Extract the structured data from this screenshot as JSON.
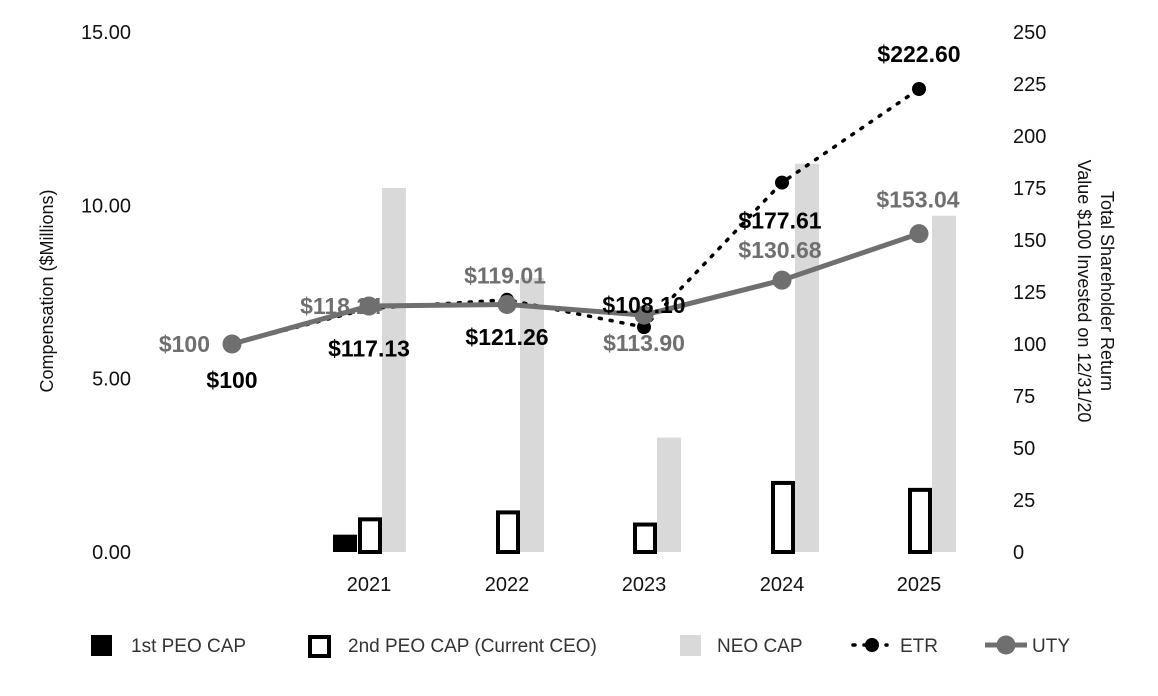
{
  "chart_data": {
    "type": "bar",
    "categories": [
      "2021",
      "2022",
      "2023",
      "2024",
      "2025"
    ],
    "y_left": {
      "label": "Compensation ($Millions)",
      "ticks": [
        "0.00",
        "5.00",
        "10.00",
        "15.00"
      ],
      "range": [
        0,
        15
      ]
    },
    "y_right": {
      "label_line1": "Total Shareholder Return",
      "label_line2": "Value $100 Invested on 12/31/20",
      "ticks": [
        "0",
        "25",
        "50",
        "75",
        "100",
        "125",
        "150",
        "175",
        "200",
        "225",
        "250"
      ],
      "range": [
        0,
        250
      ]
    },
    "bar_series": [
      {
        "name": "1st PEO CAP",
        "values": [
          0.5,
          null,
          null,
          null,
          null
        ],
        "color": "#000000",
        "style": "solid"
      },
      {
        "name": "2nd PEO CAP (Current CEO)",
        "values": [
          1.0,
          1.2,
          0.85,
          2.05,
          1.85
        ],
        "color": "#000000",
        "style": "hollow"
      },
      {
        "name": "NEO CAP",
        "values": [
          10.5,
          7.9,
          3.3,
          11.2,
          9.7
        ],
        "color": "#d9d9d9",
        "style": "solid"
      }
    ],
    "line_series": [
      {
        "name": "ETR",
        "color": "#000000",
        "style": "dotted",
        "x": [
          "2020",
          "2021",
          "2022",
          "2023",
          "2024",
          "2025"
        ],
        "values": [
          100,
          117.13,
          121.26,
          108.1,
          177.61,
          222.6
        ],
        "labels": [
          "$100",
          "$117.13",
          "$121.26",
          "$108.10",
          "$177.61",
          "$222.60"
        ]
      },
      {
        "name": "UTY",
        "color": "#6f6f6f",
        "style": "solid",
        "x": [
          "2020",
          "2021",
          "2022",
          "2023",
          "2024",
          "2025"
        ],
        "values": [
          100,
          118.24,
          119.01,
          113.9,
          130.68,
          153.04
        ],
        "labels": [
          "$100",
          "$118.24",
          "$119.01",
          "$113.90",
          "$130.68",
          "$153.04"
        ]
      }
    ],
    "legend": [
      {
        "label": "1st PEO CAP",
        "marker": "solid-square"
      },
      {
        "label": "2nd PEO CAP (Current CEO)",
        "marker": "hollow-square"
      },
      {
        "label": "NEO CAP",
        "marker": "gray-square"
      },
      {
        "label": "ETR",
        "marker": "dotted-line-dot"
      },
      {
        "label": "UTY",
        "marker": "solid-line-dot"
      }
    ],
    "legend_position": "bottom",
    "grid": false
  }
}
